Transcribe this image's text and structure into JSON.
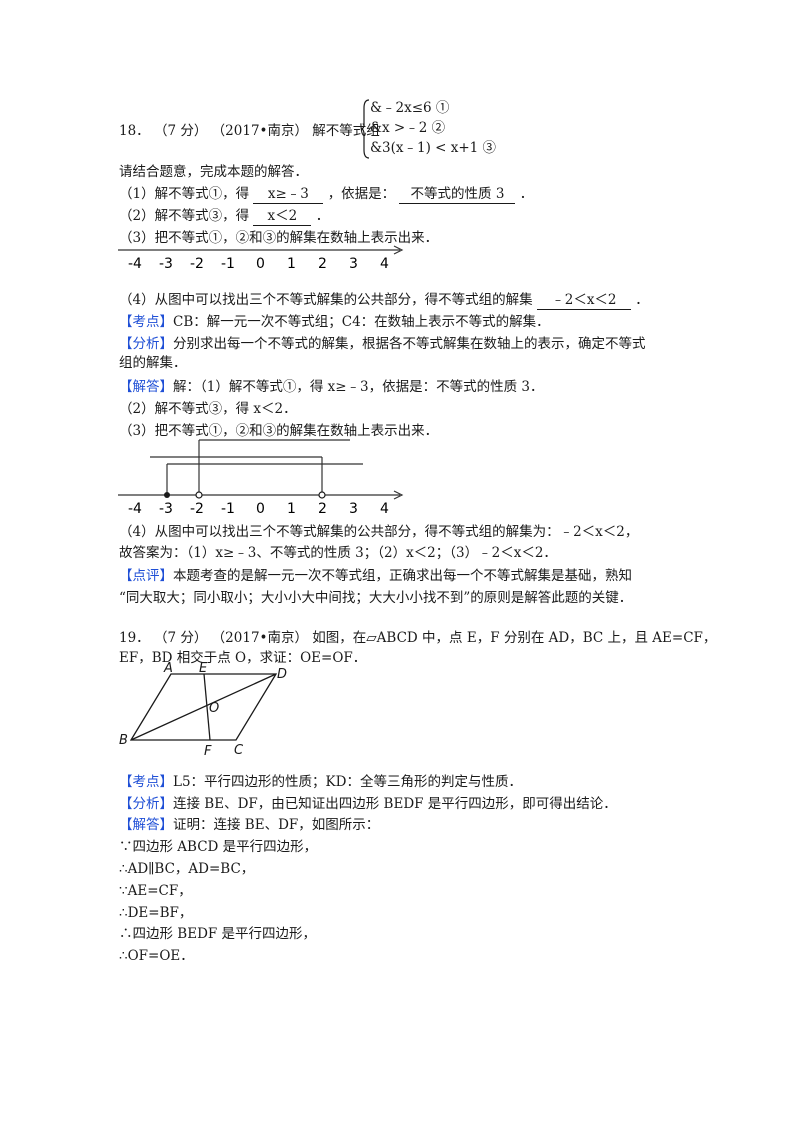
{
  "q18": {
    "number": "18．",
    "score": "（7 分）",
    "source": "（2017•南京）",
    "intro": "解不等式组",
    "system": [
      "&﹣2x≤6 ①",
      "&x >﹣2 ②",
      "&3(x﹣1) < x+1 ③"
    ],
    "line2": "请结合题意，完成本题的解答．",
    "step1_pre": "（1）解不等式①，得",
    "step1_ans": "x≥﹣3",
    "step1_mid": "，依据是：",
    "step1_ans2": "不等式的性质 3",
    "step1_end": "．",
    "step2_pre": "（2）解不等式③，得",
    "step2_ans": "x＜2",
    "step2_end": "．",
    "step3": "（3）把不等式①，②和③的解集在数轴上表示出来．",
    "axis_labels": [
      "-4",
      "-3",
      "-2",
      "-1",
      "0",
      "1",
      "2",
      "3",
      "4"
    ],
    "step4_pre": "（4）从图中可以找出三个不等式解集的公共部分，得不等式组的解集",
    "step4_ans": "﹣2＜x＜2",
    "step4_end": "．",
    "kaodian_tag": "【考点】",
    "kaodian": "CB：解一元一次不等式组；C4：在数轴上表示不等式的解集．",
    "fenxi_tag": "【分析】",
    "fenxi_1": "分别求出每一个不等式的解集，根据各不等式解集在数轴上的表示，确定不等式",
    "fenxi_2": "组的解集．",
    "jieda_tag": "【解答】",
    "jieda_1": "解：（1）解不等式①，得 x≥﹣3，依据是：不等式的性质 3．",
    "jieda_2": "（2）解不等式③，得 x＜2．",
    "jieda_3": "（3）把不等式①，②和③的解集在数轴上表示出来．",
    "jieda_4": "（4）从图中可以找出三个不等式解集的公共部分，得不等式组的解集为：﹣2＜x＜2，",
    "jieda_5": "故答案为：（1）x≥﹣3、不等式的性质 3；（2）x＜2；（3）﹣2＜x＜2．",
    "dianping_tag": "【点评】",
    "dianping_1": "本题考查的是解一元一次不等式组，正确求出每一个不等式解集是基础，熟知",
    "dianping_2": "“同大取大；同小取小；大小小大中间找；大大小小找不到”的原则是解答此题的关键．"
  },
  "q19": {
    "number": "19．",
    "score": "（7 分）",
    "source": "（2017•南京）",
    "line1": "如图，在▱ABCD 中，点 E，F 分别在 AD，BC 上，且 AE=CF，",
    "line2": "EF，BD 相交于点 O，求证：OE=OF．",
    "fig_labels": {
      "A": "A",
      "E": "E",
      "D": "D",
      "O": "O",
      "B": "B",
      "F": "F",
      "C": "C"
    },
    "kaodian_tag": "【考点】",
    "kaodian": "L5：平行四边形的性质；KD：全等三角形的判定与性质．",
    "fenxi_tag": "【分析】",
    "fenxi": "连接 BE、DF，由已知证出四边形 BEDF 是平行四边形，即可得出结论．",
    "jieda_tag": "【解答】",
    "jieda": "证明：连接 BE、DF，如图所示：",
    "proof": [
      "∵四边形 ABCD 是平行四边形，",
      "∴AD∥BC，AD=BC，",
      "∵AE=CF，",
      "∴DE=BF，",
      "∴四边形 BEDF 是平行四边形，",
      "∴OF=OE．"
    ]
  },
  "colors": {
    "tag": "#1f4fd6",
    "text": "#1a1a1a"
  }
}
